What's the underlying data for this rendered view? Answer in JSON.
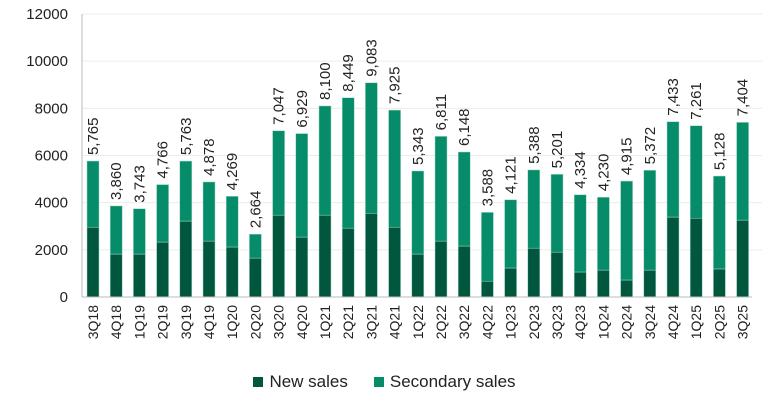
{
  "chart_data": {
    "type": "bar",
    "stacked": true,
    "categories": [
      "3Q18",
      "4Q18",
      "1Q19",
      "2Q19",
      "3Q19",
      "4Q19",
      "1Q20",
      "2Q20",
      "3Q20",
      "4Q20",
      "1Q21",
      "2Q21",
      "3Q21",
      "4Q21",
      "1Q22",
      "2Q22",
      "3Q22",
      "4Q22",
      "1Q23",
      "2Q23",
      "3Q23",
      "4Q23",
      "1Q24",
      "2Q24",
      "3Q24",
      "4Q24",
      "1Q25",
      "2Q25",
      "3Q25"
    ],
    "totals": [
      5765,
      3860,
      3743,
      4766,
      5763,
      4878,
      4269,
      2664,
      7047,
      6929,
      8100,
      8449,
      9083,
      7925,
      5343,
      6811,
      6148,
      3588,
      4121,
      5388,
      5201,
      4334,
      4230,
      4915,
      5372,
      7433,
      7261,
      5128,
      7404
    ],
    "total_labels": [
      "5,765",
      "3,860",
      "3,743",
      "4,766",
      "5,763",
      "4,878",
      "4,269",
      "2,664",
      "7,047",
      "6,929",
      "8,100",
      "8,449",
      "9,083",
      "7,925",
      "5,343",
      "6,811",
      "6,148",
      "3,588",
      "4,121",
      "5,388",
      "5,201",
      "4,334",
      "4,230",
      "4,915",
      "5,372",
      "7,433",
      "7,261",
      "5,128",
      "7,404"
    ],
    "series": [
      {
        "name": "New sales",
        "color": "#00573d",
        "values": [
          2960,
          1820,
          1820,
          2330,
          3220,
          2370,
          2120,
          1650,
          3470,
          2540,
          3470,
          2920,
          3550,
          2960,
          1820,
          2370,
          2160,
          670,
          1230,
          2070,
          1900,
          1060,
          1140,
          720,
          1140,
          3390,
          3340,
          1190,
          3260
        ]
      },
      {
        "name": "Secondary sales",
        "color": "#078c6a",
        "values": [
          2805,
          2040,
          1923,
          2436,
          2543,
          2508,
          2149,
          1014,
          3577,
          4389,
          4630,
          5529,
          5533,
          4965,
          3523,
          4441,
          3988,
          2918,
          2891,
          3318,
          3301,
          3274,
          3090,
          4195,
          4232,
          4043,
          3921,
          3938,
          4144
        ]
      }
    ],
    "y_ticks": [
      "0",
      "2000",
      "4000",
      "6000",
      "8000",
      "10000",
      "12000"
    ],
    "ylim": [
      0,
      12000
    ],
    "grid": true,
    "legend_position": "bottom"
  }
}
